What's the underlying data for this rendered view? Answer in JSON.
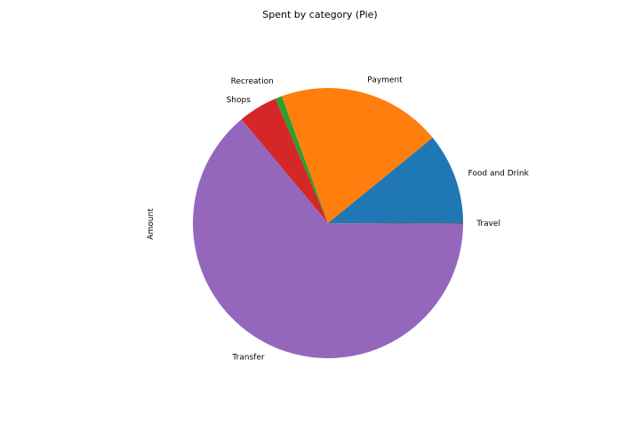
{
  "chart_data": {
    "type": "pie",
    "title": "Spent by category (Pie)",
    "ylabel": "Amount",
    "xlabel": "",
    "start_angle_deg": 0,
    "direction": "counterclockwise",
    "categories": [
      "Food and Drink",
      "Payment",
      "Recreation",
      "Shops",
      "Transfer",
      "Travel"
    ],
    "values": [
      10.9,
      19.7,
      0.8,
      4.7,
      63.9,
      0.1
    ],
    "unit": "percent of total",
    "colors": [
      "#1f77b4",
      "#ff7f0e",
      "#2ca02c",
      "#d62728",
      "#9467bd",
      "#8c564b"
    ],
    "legend": "none"
  }
}
